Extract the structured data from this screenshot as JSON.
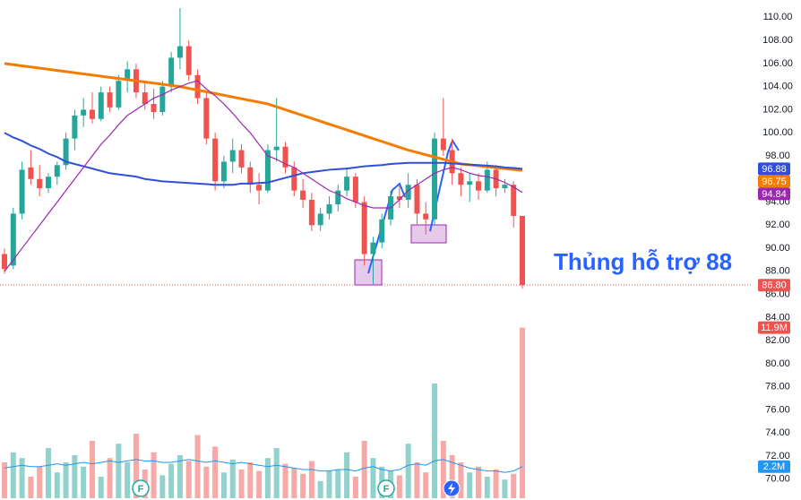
{
  "chart_data": {
    "type": "candlestick",
    "ylim": [
      68.2,
      111.5
    ],
    "yticks": [
      {
        "value": 110,
        "label": "110.00"
      },
      {
        "value": 108,
        "label": "108.00"
      },
      {
        "value": 106,
        "label": "106.00"
      },
      {
        "value": 104,
        "label": "104.00"
      },
      {
        "value": 102,
        "label": "102.00"
      },
      {
        "value": 100,
        "label": "100.00"
      },
      {
        "value": 98,
        "label": "98.00"
      },
      {
        "value": 96,
        "label": "96.00"
      },
      {
        "value": 94,
        "label": "94.00"
      },
      {
        "value": 92,
        "label": "92.00"
      },
      {
        "value": 90,
        "label": "90.00"
      },
      {
        "value": 88,
        "label": "88.00"
      },
      {
        "value": 86,
        "label": "86.00"
      },
      {
        "value": 84,
        "label": "84.00"
      },
      {
        "value": 82,
        "label": "82.00"
      },
      {
        "value": 80,
        "label": "80.00"
      },
      {
        "value": 78,
        "label": "78.00"
      },
      {
        "value": 76,
        "label": "76.00"
      },
      {
        "value": 74,
        "label": "74.00"
      },
      {
        "value": 72,
        "label": "72.00"
      },
      {
        "value": 70,
        "label": "70.00"
      }
    ],
    "up_color": "#26a69a",
    "down_color": "#ef5350",
    "open": [
      89.5,
      88.5,
      93,
      97,
      96,
      95.2,
      96.2,
      97.2,
      99.5,
      101.5,
      102,
      101.2,
      103.5,
      102.2,
      104.5,
      105.5,
      103.5,
      102.5,
      101.8,
      104,
      106.5,
      107.5,
      105,
      103,
      99.5,
      95.8,
      97.5,
      98.5,
      97,
      95.5,
      95,
      98.5,
      98.8,
      97,
      95,
      94.2,
      92,
      93,
      93.8,
      95,
      96.2,
      94,
      89.5,
      90.5,
      92.5,
      94.5,
      94.2,
      95.5,
      93,
      92.5,
      99.5,
      98.5,
      96.5,
      95.5,
      95.8,
      95,
      96.8,
      95.2,
      95.5,
      92.8
    ],
    "high": [
      90,
      93.5,
      97.5,
      98.5,
      97.2,
      96.5,
      97.5,
      100,
      102,
      103,
      103.5,
      104,
      104,
      105,
      106.2,
      106,
      104.5,
      103.8,
      104.5,
      107,
      110.8,
      108,
      105.5,
      103.5,
      100,
      98,
      99.5,
      99,
      97.5,
      96.5,
      99,
      103,
      99.2,
      97.5,
      96,
      94.8,
      93.5,
      94.5,
      95.5,
      97,
      96.5,
      94.5,
      91,
      93,
      95,
      95.5,
      96.5,
      96,
      94,
      100,
      103,
      99.5,
      97,
      96.5,
      96.5,
      97.5,
      97.2,
      96,
      95.8,
      92.8
    ],
    "low": [
      87.8,
      88.2,
      92.5,
      95.5,
      94.5,
      94.8,
      95.5,
      96.8,
      98.5,
      100.5,
      100.8,
      101,
      101.8,
      102,
      103.5,
      103,
      102,
      101.2,
      101.5,
      103.5,
      105.5,
      104.5,
      102.5,
      99,
      95,
      95.2,
      96.5,
      96.5,
      94.8,
      93.8,
      94.8,
      97.5,
      96.5,
      94.5,
      93.5,
      91.5,
      91.5,
      92.5,
      93.2,
      94.5,
      93.5,
      88.5,
      86.9,
      90,
      92,
      93.5,
      93.5,
      92,
      91.2,
      92,
      98,
      95.5,
      94.5,
      94,
      94.2,
      94.8,
      94.5,
      94.8,
      91.8,
      86.5
    ],
    "close": [
      88.2,
      93,
      96.8,
      96,
      95.2,
      96.2,
      97.2,
      99.5,
      101.5,
      102,
      101.2,
      103.5,
      102.2,
      104.5,
      105.5,
      103.5,
      102.5,
      101.8,
      104,
      106.5,
      107.5,
      105,
      103,
      99.5,
      95.8,
      97.5,
      98.5,
      97,
      95.5,
      95,
      98.5,
      98.8,
      97,
      95,
      94.2,
      92,
      93,
      93.8,
      95,
      96.2,
      94,
      89.5,
      90.5,
      92.5,
      94.5,
      94.2,
      95.5,
      93,
      92.5,
      99.5,
      98.5,
      96.5,
      95.5,
      95.8,
      95,
      96.8,
      95.2,
      95.5,
      92.8,
      86.8
    ],
    "close_label": "86.80",
    "volume": [
      2.5,
      3.2,
      2.8,
      1.5,
      2.2,
      3.5,
      1.8,
      2.5,
      3,
      2.2,
      4,
      1.5,
      2.8,
      3.8,
      2.5,
      4.5,
      2,
      3.2,
      1.6,
      2.4,
      3,
      2.6,
      4.4,
      2.2,
      3.6,
      1.8,
      2.7,
      2,
      2.5,
      1.9,
      2.8,
      3.5,
      2.4,
      2.1,
      1.7,
      2.6,
      1.2,
      1.9,
      2,
      3.2,
      1.5,
      4,
      2.8,
      2.2,
      1.9,
      1.6,
      3.8,
      2.5,
      1.8,
      8,
      4,
      3,
      2.5,
      1.8,
      2.2,
      1.5,
      2,
      1.3,
      1.7,
      11.9
    ],
    "volume_label": "11.9M",
    "volume_ylim": [
      0,
      12.5
    ],
    "volume_ma": [
      2.1,
      2.2,
      2.3,
      2.2,
      2.2,
      2.3,
      2.4,
      2.3,
      2.4,
      2.5,
      2.4,
      2.5,
      2.6,
      2.5,
      2.6,
      2.7,
      2.6,
      2.6,
      2.5,
      2.5,
      2.6,
      2.7,
      2.6,
      2.5,
      2.6,
      2.5,
      2.4,
      2.5,
      2.4,
      2.3,
      2.2,
      2.3,
      2.2,
      2.1,
      2.0,
      2.0,
      1.9,
      1.9,
      2.0,
      2.0,
      1.9,
      2.1,
      2.2,
      2.0,
      1.9,
      2.0,
      2.3,
      2.4,
      2.3,
      2.6,
      2.7,
      2.5,
      2.3,
      2.1,
      2.0,
      1.9,
      1.9,
      1.8,
      1.9,
      2.2
    ],
    "volume_ma_label": "2.2M",
    "volume_ma_color": "#2196f3",
    "series": [
      {
        "color": "#f57c00",
        "values": [
          106,
          105.9,
          105.8,
          105.7,
          105.6,
          105.5,
          105.4,
          105.3,
          105.2,
          105.1,
          105,
          104.9,
          104.8,
          104.7,
          104.6,
          104.5,
          104.4,
          104.3,
          104.2,
          104.1,
          104,
          103.85,
          103.7,
          103.55,
          103.4,
          103.25,
          103.1,
          102.95,
          102.8,
          102.65,
          102.5,
          102.25,
          102,
          101.75,
          101.5,
          101.25,
          101,
          100.75,
          100.5,
          100.25,
          100,
          99.75,
          99.5,
          99.25,
          99,
          98.75,
          98.5,
          98.3,
          98.1,
          97.9,
          97.7,
          97.5,
          97.3,
          97.22,
          97.14,
          97.06,
          96.98,
          96.9,
          96.82,
          96.75
        ]
      },
      {
        "color": "#2f4fd8",
        "values": [
          100,
          99.6,
          99.3,
          98.9,
          98.6,
          98.2,
          97.9,
          97.5,
          97.3,
          97.1,
          96.9,
          96.7,
          96.5,
          96.4,
          96.3,
          96.2,
          96,
          95.9,
          95.8,
          95.75,
          95.7,
          95.65,
          95.6,
          95.55,
          95.5,
          95.5,
          95.5,
          95.6,
          95.6,
          95.65,
          95.7,
          95.9,
          96.1,
          96.3,
          96.5,
          96.6,
          96.7,
          96.8,
          96.85,
          96.9,
          97,
          97.1,
          97.15,
          97.2,
          97.3,
          97.35,
          97.4,
          97.4,
          97.4,
          97.4,
          97.4,
          97.35,
          97.3,
          97.25,
          97.2,
          97.15,
          97.1,
          97.0,
          96.95,
          96.88
        ]
      },
      {
        "color": "#9c27b0",
        "values": [
          88,
          89,
          90,
          91,
          92,
          93,
          94,
          95,
          96,
          97,
          98,
          99,
          99.8,
          100.7,
          101.5,
          102,
          102.5,
          103,
          103.3,
          103.7,
          104,
          104.3,
          104.5,
          103.8,
          103.2,
          102.5,
          101.7,
          100.8,
          100,
          99,
          98,
          97.7,
          97.3,
          97,
          96.5,
          96,
          95.5,
          95,
          94.7,
          94.3,
          94,
          93.7,
          93.5,
          93.5,
          93.5,
          94.2,
          95,
          95.5,
          96,
          96.5,
          96.8,
          97,
          96.8,
          96.5,
          96.3,
          96.2,
          96,
          95.7,
          95.3,
          94.84
        ]
      }
    ],
    "annotation": "Thủng hỗ trợ 88",
    "events": [
      "F",
      "F"
    ]
  }
}
